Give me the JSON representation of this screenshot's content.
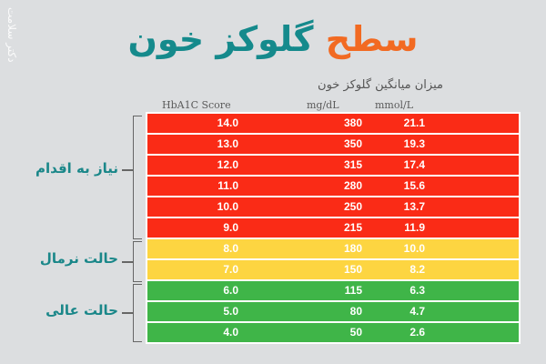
{
  "watermark": "دکتر سلامت",
  "title": {
    "accent_word": "سطح",
    "main_words": "گلوکز خون"
  },
  "subheading": "میزان میانگین گلوکز خون",
  "columns": {
    "hba1c": "HbA1C Score",
    "mgdl": "mg/dL",
    "mmol": "mmol/L"
  },
  "colors": {
    "red": "#fa2b16",
    "yellow": "#fdd541",
    "green": "#3fb548",
    "accent": "#f26a22",
    "teal": "#158a8c"
  },
  "groups": [
    {
      "label": "نیاز به اقدام",
      "color": "red",
      "rows": [
        0,
        1,
        2,
        3,
        4,
        5
      ]
    },
    {
      "label": "حالت نرمال",
      "color": "yellow",
      "rows": [
        6,
        7
      ]
    },
    {
      "label": "حالت عالی",
      "color": "green",
      "rows": [
        8,
        9,
        10
      ]
    }
  ],
  "rows": [
    {
      "hba1c": "14.0",
      "mgdl": "380",
      "mmol": "21.1",
      "level": "red"
    },
    {
      "hba1c": "13.0",
      "mgdl": "350",
      "mmol": "19.3",
      "level": "red"
    },
    {
      "hba1c": "12.0",
      "mgdl": "315",
      "mmol": "17.4",
      "level": "red"
    },
    {
      "hba1c": "11.0",
      "mgdl": "280",
      "mmol": "15.6",
      "level": "red"
    },
    {
      "hba1c": "10.0",
      "mgdl": "250",
      "mmol": "13.7",
      "level": "red"
    },
    {
      "hba1c": "9.0",
      "mgdl": "215",
      "mmol": "11.9",
      "level": "red"
    },
    {
      "hba1c": "8.0",
      "mgdl": "180",
      "mmol": "10.0",
      "level": "yellow"
    },
    {
      "hba1c": "7.0",
      "mgdl": "150",
      "mmol": "8.2",
      "level": "yellow"
    },
    {
      "hba1c": "6.0",
      "mgdl": "115",
      "mmol": "6.3",
      "level": "green"
    },
    {
      "hba1c": "5.0",
      "mgdl": "80",
      "mmol": "4.7",
      "level": "green"
    },
    {
      "hba1c": "4.0",
      "mgdl": "50",
      "mmol": "2.6",
      "level": "green"
    }
  ],
  "chart_data": {
    "type": "table",
    "title": "سطح گلوکز خون",
    "subtitle": "میزان میانگین گلوکز خون",
    "columns": [
      "HbA1C Score",
      "mg/dL",
      "mmol/L"
    ],
    "rows": [
      [
        "14.0",
        "380",
        "21.1"
      ],
      [
        "13.0",
        "350",
        "19.3"
      ],
      [
        "12.0",
        "315",
        "17.4"
      ],
      [
        "11.0",
        "280",
        "15.6"
      ],
      [
        "10.0",
        "250",
        "13.7"
      ],
      [
        "9.0",
        "215",
        "11.9"
      ],
      [
        "8.0",
        "180",
        "10.0"
      ],
      [
        "7.0",
        "150",
        "8.2"
      ],
      [
        "6.0",
        "115",
        "6.3"
      ],
      [
        "5.0",
        "80",
        "4.7"
      ],
      [
        "4.0",
        "50",
        "2.6"
      ]
    ],
    "row_groups": [
      {
        "label": "نیاز به اقدام",
        "range": [
          0,
          5
        ],
        "color": "#fa2b16"
      },
      {
        "label": "حالت نرمال",
        "range": [
          6,
          7
        ],
        "color": "#fdd541"
      },
      {
        "label": "حالت عالی",
        "range": [
          8,
          10
        ],
        "color": "#3fb548"
      }
    ]
  }
}
